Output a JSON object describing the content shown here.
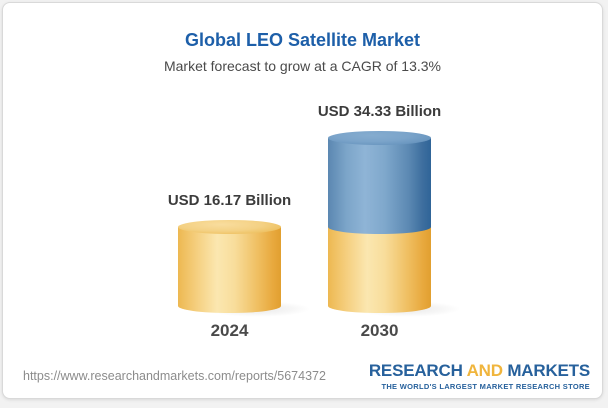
{
  "header": {
    "title": "Global LEO Satellite Market",
    "subtitle": "Market forecast to grow at a CAGR of 13.3%"
  },
  "chart_data": {
    "type": "bar",
    "subtype": "3d-cylinder-stacked",
    "title": "Global LEO Satellite Market",
    "subtitle": "Market forecast to grow at a CAGR of 13.3%",
    "unit": "USD Billion",
    "cagr_percent": 13.3,
    "categories": [
      "2024",
      "2030"
    ],
    "values": [
      16.17,
      34.33
    ],
    "value_labels": [
      "USD 16.17 Billion",
      "USD 34.33 Billion"
    ],
    "bars": [
      {
        "category": "2024",
        "value": 16.17,
        "label": "USD 16.17 Billion",
        "segments": [
          {
            "name": "market-size-2024",
            "value": 16.17,
            "palette": "yellow"
          }
        ]
      },
      {
        "category": "2030",
        "value": 34.33,
        "label": "USD 34.33 Billion",
        "segments": [
          {
            "name": "base-2024-level",
            "value": 16.17,
            "palette": "yellow"
          },
          {
            "name": "growth-2024-to-2030",
            "value": 18.16,
            "palette": "blue"
          }
        ]
      }
    ],
    "axis": {
      "x_labels": [
        "2024",
        "2030"
      ],
      "y_axis_visible": false,
      "gridlines": false
    },
    "legend": {
      "visible": false
    }
  },
  "footer": {
    "url": "https://www.researchandmarkets.com/reports/5674372",
    "logo": {
      "word1": "RESEARCH",
      "word2": "AND",
      "word3": "MARKETS",
      "tagline": "THE WORLD'S LARGEST MARKET RESEARCH STORE"
    }
  },
  "colors": {
    "accent_blue": "#1D5FA9",
    "bar_yellow": "#F2C569",
    "bar_blue": "#5D8AB6",
    "logo_blue": "#27619C",
    "logo_gold": "#F0B53D",
    "text_dark": "#3C3C3C",
    "url_gray": "#8C8C8C"
  }
}
